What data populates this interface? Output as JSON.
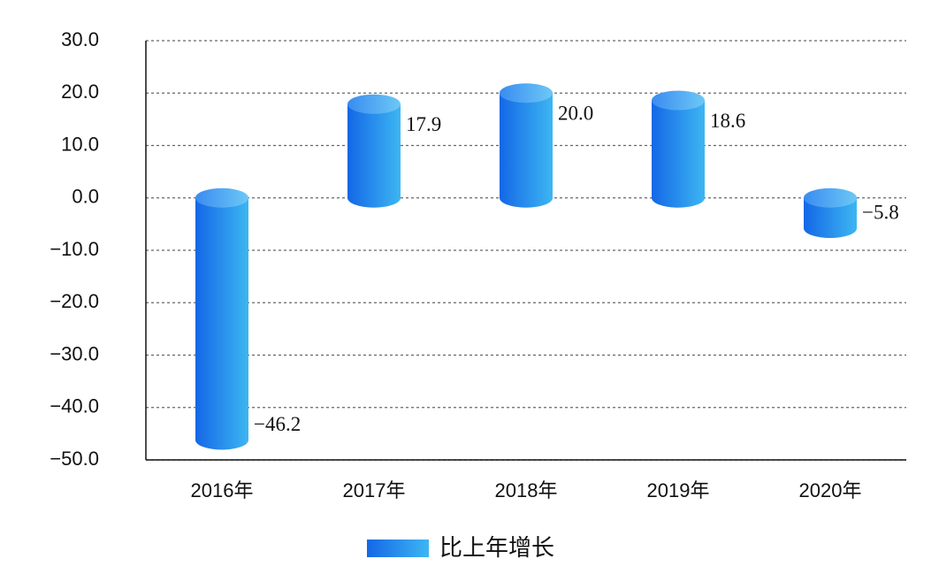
{
  "chart_data": {
    "type": "bar",
    "categories": [
      "2016年",
      "2017年",
      "2018年",
      "2019年",
      "2020年"
    ],
    "series": [
      {
        "name": "比上年增长",
        "color": "#2a8cec",
        "values": [
          -46.2,
          17.9,
          20.0,
          18.6,
          -5.8
        ],
        "value_labels": [
          "−46.2",
          "17.9",
          "20.0",
          "18.6",
          "−5.8"
        ]
      }
    ],
    "ylim": [
      -50,
      30
    ],
    "yticks": [
      {
        "value": -50,
        "label": "−50.0"
      },
      {
        "value": -40,
        "label": "−40.0"
      },
      {
        "value": -30,
        "label": "−30.0"
      },
      {
        "value": -20,
        "label": "−20.0"
      },
      {
        "value": -10,
        "label": "−10.0"
      },
      {
        "value": 0,
        "label": "0.0"
      },
      {
        "value": 10,
        "label": "10.0"
      },
      {
        "value": 20,
        "label": "20.0"
      },
      {
        "value": 30,
        "label": "30.0"
      }
    ],
    "grid": true
  }
}
